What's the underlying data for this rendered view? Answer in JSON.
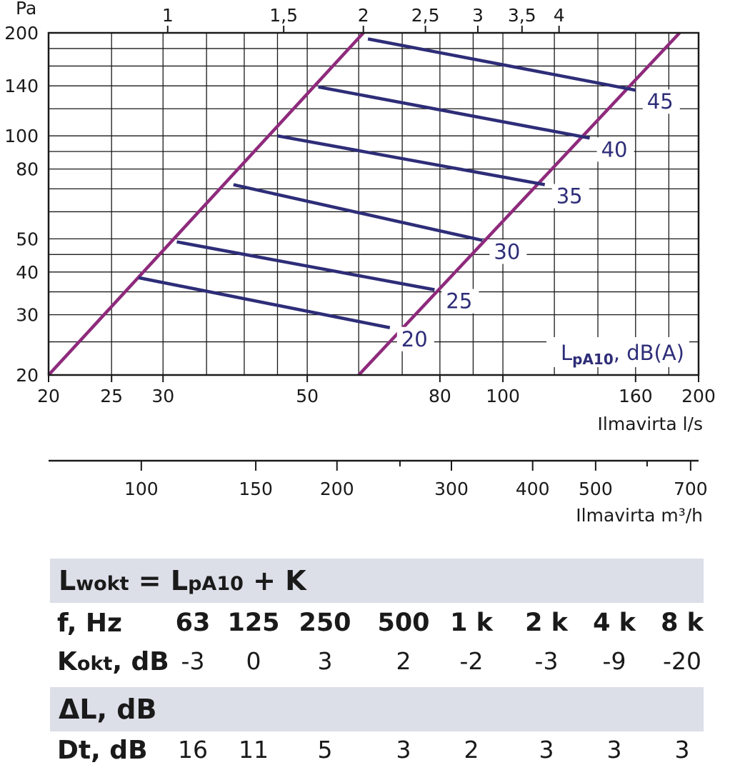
{
  "chart_data": {
    "type": "line",
    "x_axis": {
      "ticks": [
        20,
        25,
        30,
        50,
        80,
        100,
        160,
        200
      ],
      "label": "Ilmavirta l/s",
      "range": [
        20,
        200
      ],
      "scale": "log"
    },
    "y_axis": {
      "ticks": [
        20,
        30,
        40,
        50,
        80,
        100,
        140,
        200
      ],
      "unit": "Pa",
      "range": [
        20,
        200
      ],
      "scale": "log"
    },
    "top_axis": {
      "ticks": [
        "1",
        "1,5",
        "2",
        "2,5",
        "3",
        "3,5",
        "4"
      ]
    },
    "m3h_axis": {
      "ticks": [
        "100",
        "150",
        "200",
        "300",
        "400",
        "500",
        "700"
      ],
      "label": "Ilmavirta m³/h"
    },
    "curve_label_main": "L",
    "curve_label_sub": "pA10",
    "curve_label_rest": ", dB(A)",
    "boundary_color": "#8e2a7c",
    "level_color": "#2e2d78",
    "boundaries": [
      {
        "points": [
          [
            20,
            20
          ],
          [
            61,
            200
          ]
        ]
      },
      {
        "points": [
          [
            60,
            20
          ],
          [
            187,
            200
          ]
        ]
      }
    ],
    "levels": [
      {
        "label": "20",
        "points": [
          [
            27.5,
            38.5
          ],
          [
            67,
            27.5
          ]
        ]
      },
      {
        "label": "25",
        "points": [
          [
            31.5,
            49
          ],
          [
            78.5,
            35.5
          ]
        ]
      },
      {
        "label": "30",
        "points": [
          [
            38.5,
            72
          ],
          [
            93,
            49.5
          ]
        ]
      },
      {
        "label": "35",
        "points": [
          [
            45,
            100
          ],
          [
            116,
            72
          ]
        ]
      },
      {
        "label": "40",
        "points": [
          [
            52,
            139
          ],
          [
            136,
            98.5
          ]
        ]
      },
      {
        "label": "45",
        "points": [
          [
            62,
            192
          ],
          [
            160,
            136
          ]
        ]
      }
    ]
  },
  "table": {
    "formula_main_a": "L",
    "formula_sub_a": "wokt",
    "formula_mid": " = L",
    "formula_sub_b": "pA10",
    "formula_rest": " + K",
    "delta_label": "ΔL, dB",
    "freq_label": "f, Hz",
    "frequencies": [
      "63",
      "125",
      "250",
      "500",
      "1 k",
      "2 k",
      "4 k",
      "8 k"
    ],
    "k_label_main": "K",
    "k_label_sub": "okt",
    "k_label_rest": ", dB",
    "k_values": [
      "-3",
      "0",
      "3",
      "2",
      "-2",
      "-3",
      "-9",
      "-20"
    ],
    "dt_label": "Dt, dB",
    "dt_values": [
      "16",
      "11",
      "5",
      "3",
      "2",
      "3",
      "3",
      "3"
    ]
  }
}
